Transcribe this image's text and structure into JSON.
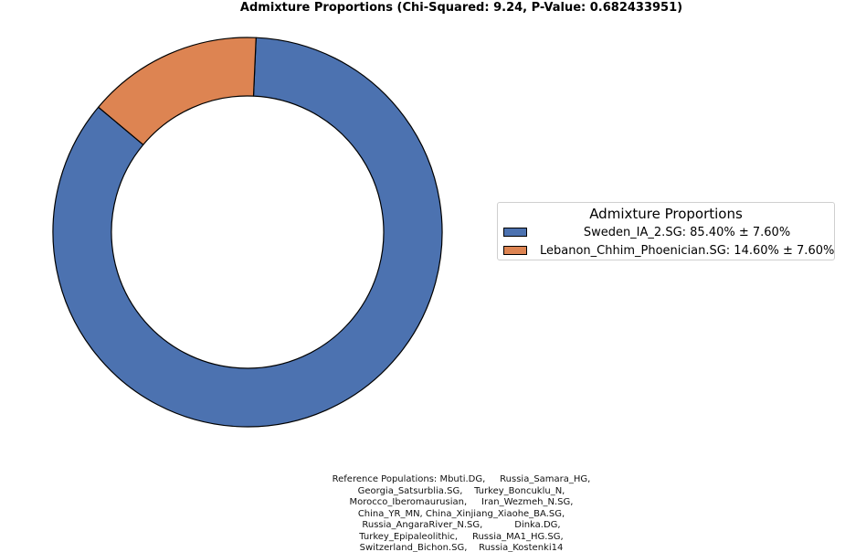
{
  "chart_data": {
    "type": "pie",
    "style": "donut",
    "title": "Admixture Proportions (Chi-Squared: 9.24, P-Value: 0.682433951)",
    "series": [
      {
        "name": "Sweden_IA_2.SG",
        "value": 85.4,
        "error": 7.6,
        "color": "#4c72b0",
        "legend_label": "Sweden_IA_2.SG: 85.40% ± 7.60%"
      },
      {
        "name": "Lebanon_Chhim_Phoenician.SG",
        "value": 14.6,
        "error": 7.6,
        "color": "#dd8452",
        "legend_label": "Lebanon_Chhim_Phoenician.SG: 14.60% ± 7.60%"
      }
    ],
    "legend": {
      "title": "Admixture Proportions",
      "placement": "right"
    },
    "footnote": "Reference Populations: Mbuti.DG,     Russia_Samara_HG,\nGeorgia_Satsurblia.SG,    Turkey_Boncuklu_N,\nMorocco_Iberomaurusian,     Iran_Wezmeh_N.SG,\nChina_YR_MN, China_Xinjiang_Xiaohe_BA.SG,\nRussia_AngaraRiver_N.SG,           Dinka.DG,\nTurkey_Epipaleolithic,     Russia_MA1_HG.SG,\nSwitzerland_Bichon.SG,    Russia_Kostenki14"
  }
}
